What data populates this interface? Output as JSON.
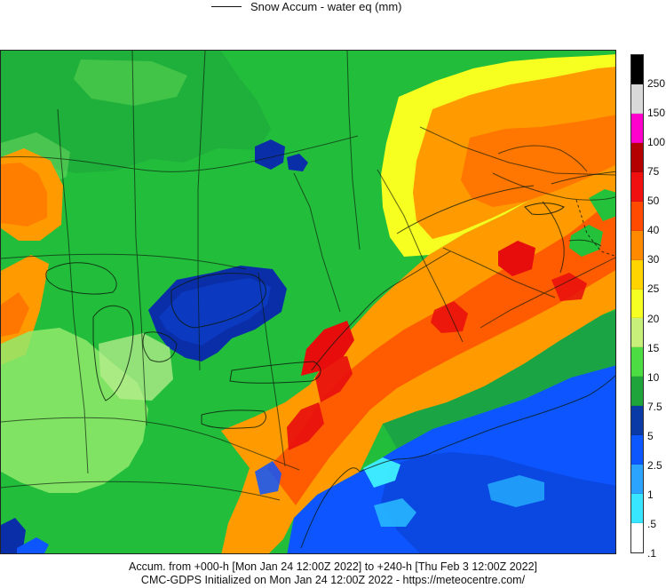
{
  "legend": {
    "title": "Snow Accum - water eq (mm)"
  },
  "color_scale": {
    "labels": [
      "250",
      "150",
      "100",
      "75",
      "50",
      "40",
      "30",
      "25",
      "20",
      "15",
      "10",
      "7.5",
      "5",
      "2.5",
      "1",
      ".5",
      ".1"
    ],
    "swatches": [
      "#000000",
      "#d9d9d9",
      "#ff00cc",
      "#b40000",
      "#f01010",
      "#ff4a00",
      "#ff8a00",
      "#ffd400",
      "#f5ff22",
      "#c6f07a",
      "#4bdd42",
      "#1ea43a",
      "#0a3aa6",
      "#0d57ff",
      "#2aa4ff",
      "#38e7ff",
      "#ffffff"
    ]
  },
  "footer": {
    "line1": "Accum. from +000-h [Mon Jan 24 12:00Z 2022] to +240-h [Thu Feb 3 12:00Z 2022]",
    "line2": "CMC-GDPS Initialized on Mon Jan 24 12:00Z 2022 - https://meteocentre.com/"
  },
  "map": {
    "colors": {
      "deep_blue": "#0a2ea8",
      "blue": "#0d55ff",
      "light_blue": "#27b6ff",
      "cyan": "#40f1ff",
      "green": "#24c13a",
      "light_green": "#91ea6b",
      "pale_green": "#b8ef8d",
      "yellow": "#f6ff1f",
      "orange": "#ff9a00",
      "red_orange": "#ff4b00",
      "red": "#e80d0d",
      "dark_green": "#1aa443"
    }
  }
}
